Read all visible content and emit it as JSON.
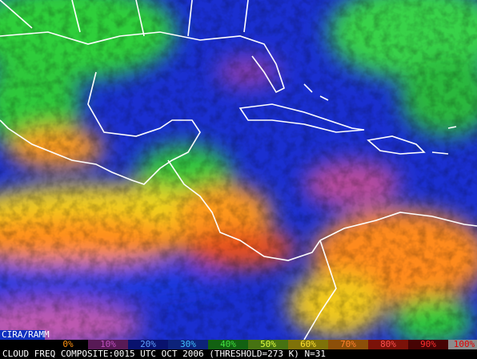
{
  "credit": "CIRA/RAMM",
  "legend": {
    "labels": [
      "0%",
      "10%",
      "20%",
      "30%",
      "40%",
      "50%",
      "60%",
      "70%",
      "80%",
      "90%",
      "100%"
    ]
  },
  "caption": "CLOUD FREQ COMPOSITE:0015 UTC OCT 2006 (THRESHOLD=273 K) N=31"
}
